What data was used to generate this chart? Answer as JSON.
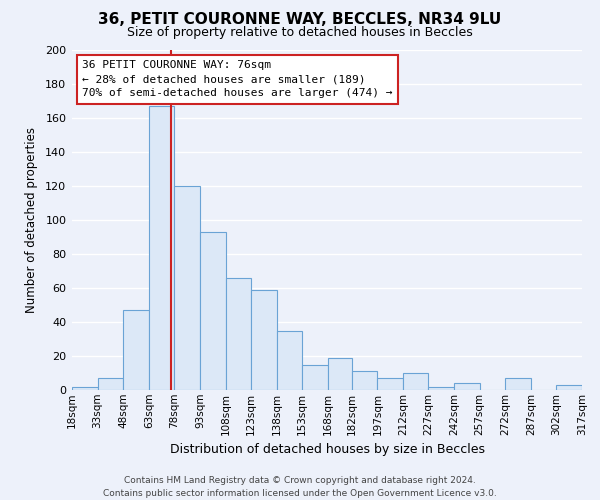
{
  "title": "36, PETIT COURONNE WAY, BECCLES, NR34 9LU",
  "subtitle": "Size of property relative to detached houses in Beccles",
  "xlabel": "Distribution of detached houses by size in Beccles",
  "ylabel": "Number of detached properties",
  "footer_line1": "Contains HM Land Registry data © Crown copyright and database right 2024.",
  "footer_line2": "Contains public sector information licensed under the Open Government Licence v3.0.",
  "bar_edges": [
    18,
    33,
    48,
    63,
    78,
    93,
    108,
    123,
    138,
    153,
    168,
    182,
    197,
    212,
    227,
    242,
    257,
    272,
    287,
    302,
    317
  ],
  "bar_heights": [
    2,
    7,
    47,
    167,
    120,
    93,
    66,
    59,
    35,
    15,
    19,
    11,
    7,
    10,
    2,
    4,
    0,
    7,
    0,
    3,
    0
  ],
  "bar_fill_color": "#dce8f7",
  "bar_edge_color": "#6aa3d5",
  "property_value": 76,
  "vline_color": "#cc2222",
  "annotation_text_line1": "36 PETIT COURONNE WAY: 76sqm",
  "annotation_text_line2": "← 28% of detached houses are smaller (189)",
  "annotation_text_line3": "70% of semi-detached houses are larger (474) →",
  "annotation_box_fill": "#ffffff",
  "annotation_box_edge": "#cc2222",
  "ylim": [
    0,
    200
  ],
  "yticks": [
    0,
    20,
    40,
    60,
    80,
    100,
    120,
    140,
    160,
    180,
    200
  ],
  "tick_labels": [
    "18sqm",
    "33sqm",
    "48sqm",
    "63sqm",
    "78sqm",
    "93sqm",
    "108sqm",
    "123sqm",
    "138sqm",
    "153sqm",
    "168sqm",
    "182sqm",
    "197sqm",
    "212sqm",
    "227sqm",
    "242sqm",
    "257sqm",
    "272sqm",
    "287sqm",
    "302sqm",
    "317sqm"
  ],
  "bg_color": "#edf1fa",
  "grid_color": "#ffffff",
  "title_fontsize": 11,
  "subtitle_fontsize": 9
}
